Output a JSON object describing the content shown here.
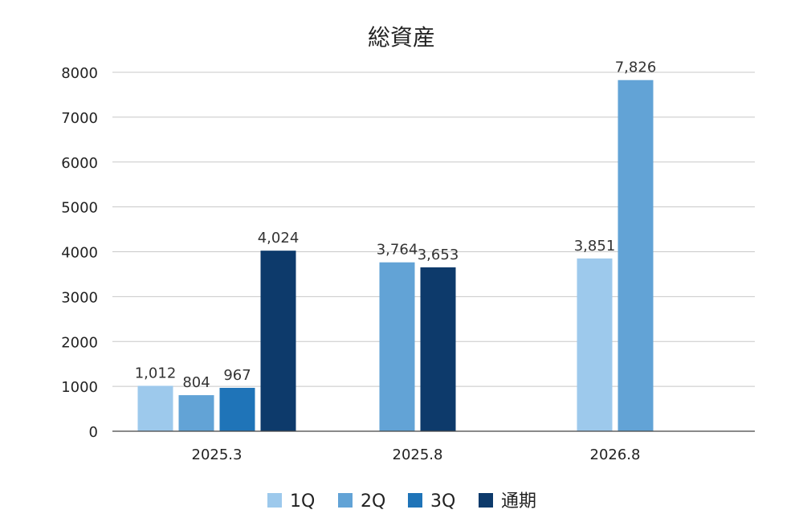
{
  "chart_data": {
    "type": "bar",
    "title": "総資産",
    "xlabel": "",
    "ylabel": "",
    "categories": [
      "2025.3",
      "2025.8",
      "2026.8"
    ],
    "ylim": [
      0,
      8000
    ],
    "yticks": [
      0,
      1000,
      2000,
      3000,
      4000,
      5000,
      6000,
      7000,
      8000
    ],
    "grid": true,
    "legend_position": "bottom",
    "series": [
      {
        "name": "1Q",
        "color": "#9dc9ec",
        "values": [
          1012,
          null,
          3851
        ],
        "labels": [
          "1,012",
          "",
          "3,851"
        ]
      },
      {
        "name": "2Q",
        "color": "#62a3d6",
        "values": [
          804,
          3764,
          7826
        ],
        "labels": [
          "804",
          "3,764",
          "7,826"
        ]
      },
      {
        "name": "3Q",
        "color": "#1f74b8",
        "values": [
          967,
          null,
          null
        ],
        "labels": [
          "967",
          "",
          ""
        ]
      },
      {
        "name": "通期",
        "color": "#0d3a6b",
        "values": [
          4024,
          3653,
          null
        ],
        "labels": [
          "4,024",
          "3,653",
          ""
        ]
      }
    ]
  }
}
